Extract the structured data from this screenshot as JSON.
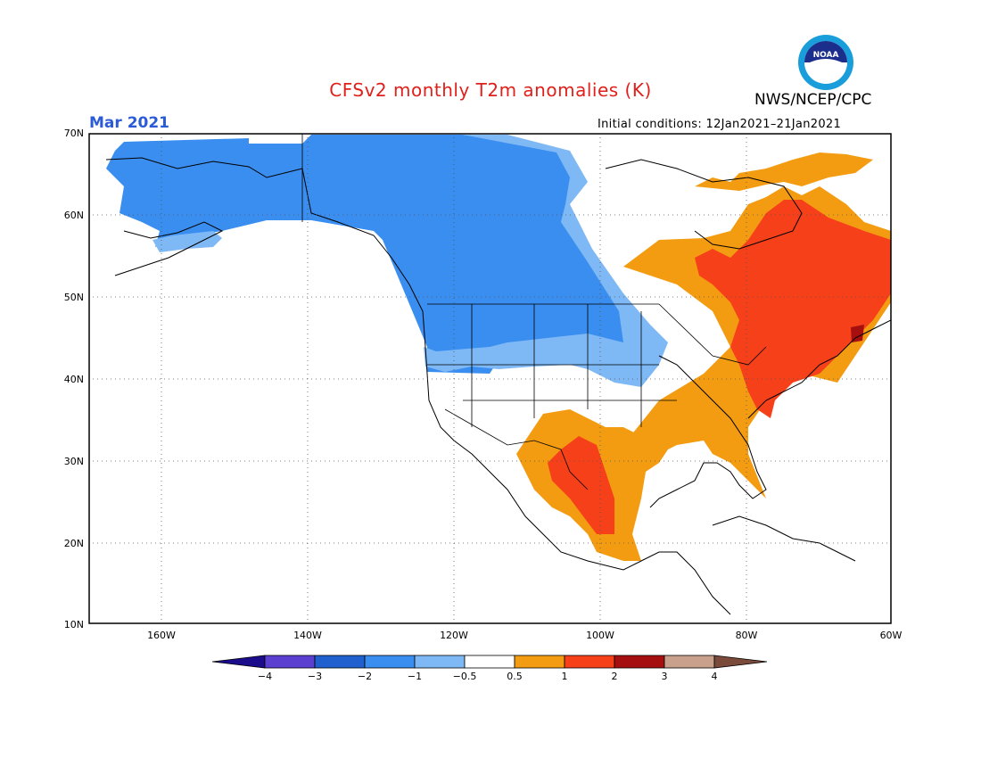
{
  "header": {
    "title": "CFSv2 monthly T2m anomalies (K)",
    "organization": "NWS/NCEP/CPC",
    "month": "Mar 2021",
    "initial_conditions": "Initial conditions: 12Jan2021–21Jan2021",
    "logo_text": "NOAA",
    "title_color": "#e0201a",
    "month_color": "#2b5bd6"
  },
  "map": {
    "projection": "cylindrical-equidistant",
    "lon_range": [
      -171,
      -60
    ],
    "lat_range": [
      10,
      70
    ],
    "lat_labels": [
      "70N",
      "60N",
      "50N",
      "40N",
      "30N",
      "20N",
      "10N"
    ],
    "lon_labels": [
      "160W",
      "140W",
      "120W",
      "100W",
      "80W",
      "60W"
    ],
    "grid": "dotted",
    "regions": [
      {
        "name": "alaska",
        "anomaly": "-1 to -2"
      },
      {
        "name": "western-canada",
        "anomaly": "-1 to -2"
      },
      {
        "name": "northern-plains",
        "anomaly": "-1 to -2"
      },
      {
        "name": "quebec-labrador",
        "anomaly": "1 to 2"
      },
      {
        "name": "new-england",
        "anomaly": "1 to 2"
      },
      {
        "name": "nova-scotia",
        "anomaly": "2 to 3"
      },
      {
        "name": "southeast-us",
        "anomaly": "0.5 to 1"
      },
      {
        "name": "mexico-texas",
        "anomaly": "1 to 2"
      }
    ]
  },
  "colorbar": {
    "labels": [
      "−4",
      "−3",
      "−2",
      "−1",
      "−0.5",
      "0.5",
      "1",
      "2",
      "3",
      "4"
    ],
    "colors": [
      "#1b0c8c",
      "#5a3fd1",
      "#1f5fce",
      "#3a8ef0",
      "#7fb9f5",
      "#ffffff",
      "#f39c12",
      "#f5401a",
      "#a50f0f",
      "#c8a08c",
      "#7a4a3a"
    ]
  }
}
